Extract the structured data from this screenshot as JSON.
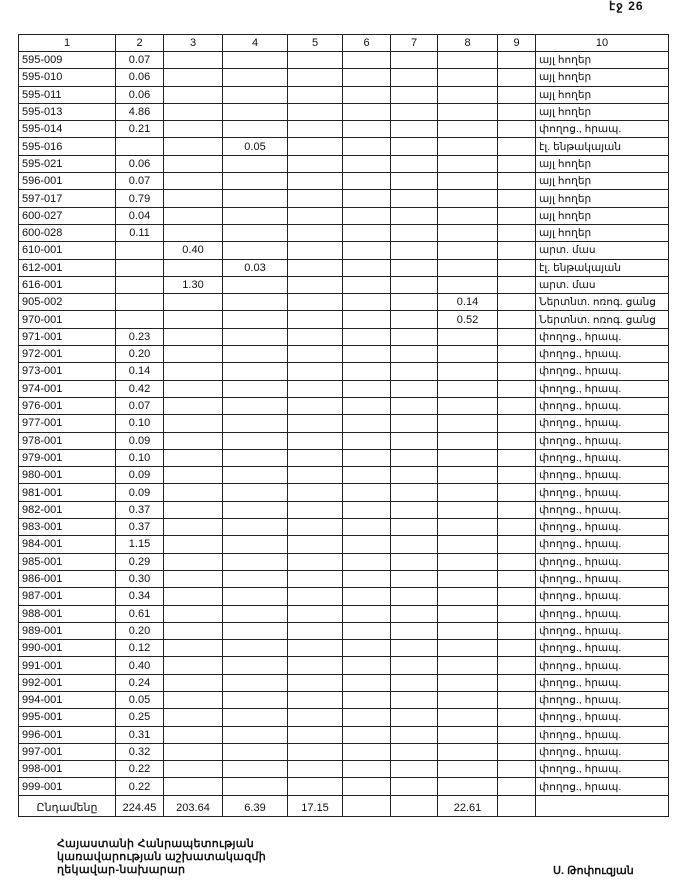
{
  "page_number": "էջ 26",
  "columns": [
    "1",
    "2",
    "3",
    "4",
    "5",
    "6",
    "7",
    "8",
    "9",
    "10"
  ],
  "rows": [
    [
      "595-009",
      "0.07",
      "",
      "",
      "",
      "",
      "",
      "",
      "",
      "այլ հողեր"
    ],
    [
      "595-010",
      "0.06",
      "",
      "",
      "",
      "",
      "",
      "",
      "",
      "այլ հողեր"
    ],
    [
      "595-011",
      "0.06",
      "",
      "",
      "",
      "",
      "",
      "",
      "",
      "այլ հողեր"
    ],
    [
      "595-013",
      "4.86",
      "",
      "",
      "",
      "",
      "",
      "",
      "",
      "այլ հողեր"
    ],
    [
      "595-014",
      "0.21",
      "",
      "",
      "",
      "",
      "",
      "",
      "",
      "փողոց., հրապ."
    ],
    [
      "595-016",
      "",
      "",
      "0.05",
      "",
      "",
      "",
      "",
      "",
      "էլ. ենթակայան"
    ],
    [
      "595-021",
      "0.06",
      "",
      "",
      "",
      "",
      "",
      "",
      "",
      "այլ հողեր"
    ],
    [
      "596-001",
      "0.07",
      "",
      "",
      "",
      "",
      "",
      "",
      "",
      "այլ հողեր"
    ],
    [
      "597-017",
      "0.79",
      "",
      "",
      "",
      "",
      "",
      "",
      "",
      "այլ հողեր"
    ],
    [
      "600-027",
      "0.04",
      "",
      "",
      "",
      "",
      "",
      "",
      "",
      "այլ հողեր"
    ],
    [
      "600-028",
      "0.11",
      "",
      "",
      "",
      "",
      "",
      "",
      "",
      "այլ հողեր"
    ],
    [
      "610-001",
      "",
      "0.40",
      "",
      "",
      "",
      "",
      "",
      "",
      "արտ. մաս"
    ],
    [
      "612-001",
      "",
      "",
      "0.03",
      "",
      "",
      "",
      "",
      "",
      "էլ. ենթակայան"
    ],
    [
      "616-001",
      "",
      "1.30",
      "",
      "",
      "",
      "",
      "",
      "",
      "արտ. մաս"
    ],
    [
      "905-002",
      "",
      "",
      "",
      "",
      "",
      "",
      "0.14",
      "",
      "Ներտնտ. ոռոգ. ցանց"
    ],
    [
      "970-001",
      "",
      "",
      "",
      "",
      "",
      "",
      "0.52",
      "",
      "Ներտնտ. ոռոգ. ցանց"
    ],
    [
      "971-001",
      "0.23",
      "",
      "",
      "",
      "",
      "",
      "",
      "",
      "փողոց., հրապ."
    ],
    [
      "972-001",
      "0.20",
      "",
      "",
      "",
      "",
      "",
      "",
      "",
      "փողոց., հրապ."
    ],
    [
      "973-001",
      "0.14",
      "",
      "",
      "",
      "",
      "",
      "",
      "",
      "փողոց., հրապ."
    ],
    [
      "974-001",
      "0.42",
      "",
      "",
      "",
      "",
      "",
      "",
      "",
      "փողոց., հրապ."
    ],
    [
      "976-001",
      "0.07",
      "",
      "",
      "",
      "",
      "",
      "",
      "",
      "փողոց., հրապ."
    ],
    [
      "977-001",
      "0.10",
      "",
      "",
      "",
      "",
      "",
      "",
      "",
      "փողոց., հրապ."
    ],
    [
      "978-001",
      "0.09",
      "",
      "",
      "",
      "",
      "",
      "",
      "",
      "փողոց., հրապ."
    ],
    [
      "979-001",
      "0.10",
      "",
      "",
      "",
      "",
      "",
      "",
      "",
      "փողոց., հրապ."
    ],
    [
      "980-001",
      "0.09",
      "",
      "",
      "",
      "",
      "",
      "",
      "",
      "փողոց., հրապ."
    ],
    [
      "981-001",
      "0.09",
      "",
      "",
      "",
      "",
      "",
      "",
      "",
      "փողոց., հրապ."
    ],
    [
      "982-001",
      "0.37",
      "",
      "",
      "",
      "",
      "",
      "",
      "",
      "փողոց., հրապ."
    ],
    [
      "983-001",
      "0.37",
      "",
      "",
      "",
      "",
      "",
      "",
      "",
      "փողոց., հրապ."
    ],
    [
      "984-001",
      "1.15",
      "",
      "",
      "",
      "",
      "",
      "",
      "",
      "փողոց., հրապ."
    ],
    [
      "985-001",
      "0.29",
      "",
      "",
      "",
      "",
      "",
      "",
      "",
      "փողոց., հրապ."
    ],
    [
      "986-001",
      "0.30",
      "",
      "",
      "",
      "",
      "",
      "",
      "",
      "փողոց., հրապ."
    ],
    [
      "987-001",
      "0.34",
      "",
      "",
      "",
      "",
      "",
      "",
      "",
      "փողոց., հրապ."
    ],
    [
      "988-001",
      "0.61",
      "",
      "",
      "",
      "",
      "",
      "",
      "",
      "փողոց., հրապ."
    ],
    [
      "989-001",
      "0.20",
      "",
      "",
      "",
      "",
      "",
      "",
      "",
      "փողոց., հրապ."
    ],
    [
      "990-001",
      "0.12",
      "",
      "",
      "",
      "",
      "",
      "",
      "",
      "փողոց., հրապ."
    ],
    [
      "991-001",
      "0.40",
      "",
      "",
      "",
      "",
      "",
      "",
      "",
      "փողոց., հրապ."
    ],
    [
      "992-001",
      "0.24",
      "",
      "",
      "",
      "",
      "",
      "",
      "",
      "փողոց., հրապ."
    ],
    [
      "994-001",
      "0.05",
      "",
      "",
      "",
      "",
      "",
      "",
      "",
      "փողոց., հրապ."
    ],
    [
      "995-001",
      "0.25",
      "",
      "",
      "",
      "",
      "",
      "",
      "",
      "փողոց., հրապ."
    ],
    [
      "996-001",
      "0.31",
      "",
      "",
      "",
      "",
      "",
      "",
      "",
      "փողոց., հրապ."
    ],
    [
      "997-001",
      "0.32",
      "",
      "",
      "",
      "",
      "",
      "",
      "",
      "փողոց., հրապ."
    ],
    [
      "998-001",
      "0.22",
      "",
      "",
      "",
      "",
      "",
      "",
      "",
      "փողոց., հրապ."
    ],
    [
      "999-001",
      "0.22",
      "",
      "",
      "",
      "",
      "",
      "",
      "",
      "փողոց., հրապ."
    ]
  ],
  "total": [
    "Ընդամենը",
    "224.45",
    "203.64",
    "6.39",
    "17.15",
    "",
    "",
    "22.61",
    "",
    ""
  ],
  "footer": {
    "lines": [
      "Հայաստանի Հանրապետության",
      "կառավարության աշխատակազմի",
      "ղեկավար-նախարար"
    ],
    "signatory": "Ս. Թոփուզյան"
  }
}
